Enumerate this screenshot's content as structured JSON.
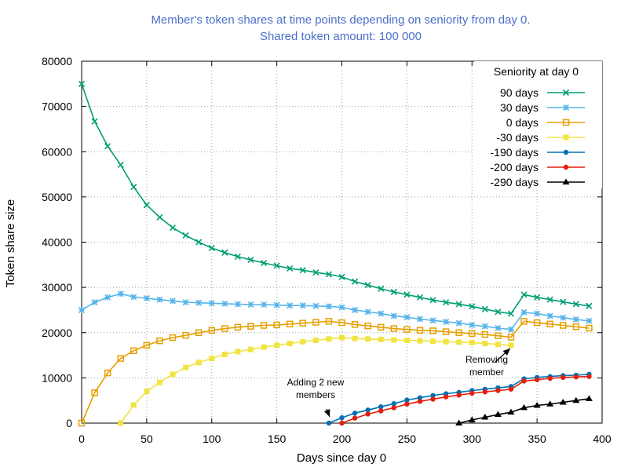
{
  "chart_data": {
    "type": "line",
    "title": "Member's token shares at time points depending on seniority from day 0.",
    "subtitle": "Shared token amount: 100 000",
    "xlabel": "Days since day 0",
    "ylabel": "Token share size",
    "xlim": [
      0,
      400
    ],
    "ylim": [
      0,
      80000
    ],
    "xticks": [
      0,
      50,
      100,
      150,
      200,
      250,
      300,
      350,
      400
    ],
    "yticks": [
      0,
      10000,
      20000,
      30000,
      40000,
      50000,
      60000,
      70000,
      80000
    ],
    "grid": true,
    "legend": {
      "title": "Seniority at day 0",
      "placement": "top-right"
    },
    "series": [
      {
        "name": "90 days",
        "color": "#009e73",
        "marker": "x",
        "x": [
          0,
          10,
          20,
          30,
          40,
          50,
          60,
          70,
          80,
          90,
          100,
          110,
          120,
          130,
          140,
          150,
          160,
          170,
          180,
          190,
          200,
          210,
          220,
          230,
          240,
          250,
          260,
          270,
          280,
          290,
          300,
          310,
          320,
          330,
          340,
          350,
          360,
          370,
          380,
          390
        ],
        "y": [
          75000,
          66700,
          61200,
          57100,
          52200,
          48200,
          45500,
          43200,
          41500,
          40000,
          38700,
          37700,
          36800,
          36100,
          35400,
          34800,
          34200,
          33800,
          33300,
          32900,
          32300,
          31300,
          30500,
          29700,
          29000,
          28400,
          27800,
          27200,
          26700,
          26300,
          25800,
          25200,
          24600,
          24200,
          28400,
          27800,
          27300,
          26800,
          26300,
          25900
        ]
      },
      {
        "name": "30 days",
        "color": "#56b4e9",
        "marker": "star",
        "x": [
          0,
          10,
          20,
          30,
          40,
          50,
          60,
          70,
          80,
          90,
          100,
          110,
          120,
          130,
          140,
          150,
          160,
          170,
          180,
          190,
          200,
          210,
          220,
          230,
          240,
          250,
          260,
          270,
          280,
          290,
          300,
          310,
          320,
          330,
          340,
          350,
          360,
          370,
          380,
          390
        ],
        "y": [
          25000,
          26700,
          27800,
          28600,
          27900,
          27600,
          27300,
          27000,
          26700,
          26600,
          26500,
          26400,
          26300,
          26200,
          26200,
          26100,
          26000,
          26000,
          25900,
          25800,
          25600,
          25000,
          24600,
          24200,
          23700,
          23400,
          23000,
          22700,
          22400,
          22100,
          21700,
          21400,
          21000,
          20700,
          24500,
          24200,
          23700,
          23300,
          22900,
          22600
        ]
      },
      {
        "name": "0 days",
        "color": "#e69f00",
        "marker": "square-open",
        "x": [
          0,
          10,
          20,
          30,
          40,
          50,
          60,
          70,
          80,
          90,
          100,
          110,
          120,
          130,
          140,
          150,
          160,
          170,
          180,
          190,
          200,
          210,
          220,
          230,
          240,
          250,
          260,
          270,
          280,
          290,
          300,
          310,
          320,
          330,
          340,
          350,
          360,
          370,
          380,
          390
        ],
        "y": [
          0,
          6700,
          11100,
          14300,
          16000,
          17200,
          18200,
          18900,
          19400,
          20000,
          20500,
          20900,
          21200,
          21400,
          21600,
          21700,
          21900,
          22100,
          22300,
          22500,
          22200,
          21800,
          21500,
          21200,
          20900,
          20700,
          20500,
          20400,
          20200,
          20000,
          19800,
          19600,
          19300,
          19000,
          22500,
          22200,
          21900,
          21600,
          21300,
          21000
        ]
      },
      {
        "name": "-30 days",
        "color": "#f0e442",
        "marker": "square",
        "x": [
          30,
          40,
          50,
          60,
          70,
          80,
          90,
          100,
          110,
          120,
          130,
          140,
          150,
          160,
          170,
          180,
          190,
          200,
          210,
          220,
          230,
          240,
          250,
          260,
          270,
          280,
          290,
          300,
          310,
          320,
          330
        ],
        "y": [
          0,
          4000,
          7000,
          9000,
          10800,
          12300,
          13400,
          14300,
          15200,
          15800,
          16300,
          16800,
          17200,
          17600,
          18000,
          18300,
          18600,
          18900,
          18700,
          18600,
          18500,
          18400,
          18300,
          18200,
          18100,
          18000,
          17900,
          17800,
          17600,
          17400,
          17200
        ]
      },
      {
        "name": "-190 days",
        "color": "#0072b2",
        "marker": "circle",
        "x": [
          190,
          200,
          210,
          220,
          230,
          240,
          250,
          260,
          270,
          280,
          290,
          300,
          310,
          320,
          330,
          340,
          350,
          360,
          370,
          380,
          390
        ],
        "y": [
          0,
          1200,
          2200,
          2900,
          3600,
          4300,
          5100,
          5600,
          6100,
          6500,
          6800,
          7200,
          7500,
          7800,
          8100,
          9800,
          10100,
          10300,
          10500,
          10600,
          10800
        ]
      },
      {
        "name": "-200 days",
        "color": "#e51e10",
        "marker": "circle",
        "x": [
          200,
          210,
          220,
          230,
          240,
          250,
          260,
          270,
          280,
          290,
          300,
          310,
          320,
          330,
          340,
          350,
          360,
          370,
          380,
          390
        ],
        "y": [
          0,
          1100,
          2000,
          2700,
          3400,
          4200,
          4800,
          5300,
          5800,
          6200,
          6600,
          6900,
          7200,
          7500,
          9300,
          9600,
          9900,
          10100,
          10200,
          10300
        ]
      },
      {
        "name": "-290 days",
        "color": "#000000",
        "marker": "triangle",
        "x": [
          290,
          300,
          310,
          320,
          330,
          340,
          350,
          360,
          370,
          380,
          390
        ],
        "y": [
          0,
          700,
          1300,
          1900,
          2400,
          3400,
          3900,
          4200,
          4600,
          5000,
          5400
        ]
      }
    ],
    "annotations": [
      {
        "text": [
          "Adding 2 new",
          "members"
        ],
        "x": 190,
        "y": 0
      },
      {
        "text": [
          "Removing",
          "member"
        ],
        "x": 330,
        "y": 16500
      }
    ]
  }
}
